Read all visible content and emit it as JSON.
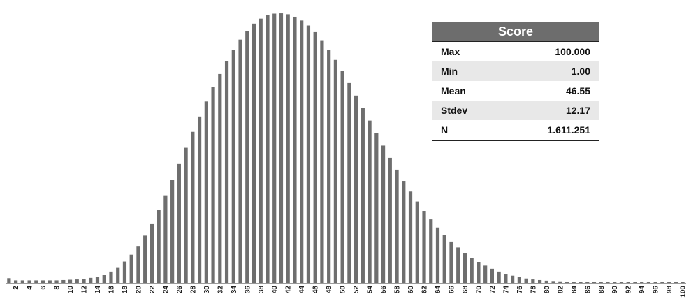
{
  "chart_data": {
    "type": "bar",
    "title": "",
    "xlabel": "",
    "ylabel": "",
    "x": [
      1,
      2,
      3,
      4,
      5,
      6,
      7,
      8,
      9,
      10,
      11,
      12,
      13,
      14,
      15,
      16,
      17,
      18,
      19,
      20,
      21,
      22,
      23,
      24,
      25,
      26,
      27,
      28,
      29,
      30,
      31,
      32,
      33,
      34,
      35,
      36,
      37,
      38,
      39,
      40,
      41,
      42,
      43,
      44,
      45,
      46,
      47,
      48,
      49,
      50,
      51,
      52,
      53,
      54,
      55,
      56,
      57,
      58,
      59,
      60,
      61,
      62,
      63,
      64,
      65,
      66,
      67,
      68,
      69,
      70,
      71,
      72,
      73,
      74,
      75,
      76,
      77,
      78,
      79,
      80,
      81,
      82,
      83,
      84,
      85,
      86,
      87,
      88,
      89,
      90,
      91,
      92,
      93,
      94,
      95,
      96,
      97,
      98,
      99,
      100
    ],
    "x_tick_labels": [
      "2",
      "4",
      "6",
      "8",
      "10",
      "12",
      "14",
      "16",
      "18",
      "20",
      "22",
      "24",
      "26",
      "28",
      "30",
      "32",
      "34",
      "36",
      "38",
      "40",
      "42",
      "44",
      "46",
      "48",
      "50",
      "52",
      "54",
      "56",
      "58",
      "60",
      "62",
      "64",
      "66",
      "68",
      "70",
      "72",
      "74",
      "76",
      "78",
      "80",
      "82",
      "84",
      "86",
      "88",
      "90",
      "92",
      "94",
      "96",
      "98",
      "100"
    ],
    "values": [
      1.5,
      0.8,
      0.8,
      0.8,
      0.8,
      0.8,
      0.8,
      0.8,
      0.9,
      1.0,
      1.1,
      1.3,
      1.6,
      2.0,
      2.6,
      3.6,
      5.0,
      6.8,
      9.0,
      11.8,
      15.1,
      19.0,
      23.3,
      28.0,
      32.9,
      38.0,
      43.2,
      48.3,
      53.2,
      58.0,
      62.6,
      66.8,
      70.8,
      74.5,
      77.8,
      80.6,
      82.9,
      84.5,
      85.6,
      86.1,
      86.2,
      85.9,
      85.1,
      83.9,
      82.3,
      80.2,
      77.6,
      74.6,
      71.3,
      67.7,
      63.9,
      59.9,
      55.9,
      51.9,
      47.9,
      43.9,
      40.0,
      36.2,
      32.6,
      29.2,
      26.0,
      23.0,
      20.3,
      17.7,
      15.3,
      13.2,
      11.3,
      9.6,
      8.0,
      6.7,
      5.5,
      4.5,
      3.6,
      2.9,
      2.3,
      1.8,
      1.4,
      1.1,
      0.9,
      0.7,
      0.6,
      0.5,
      0.4,
      0.3,
      0.3,
      0.2,
      0.2,
      0.2,
      0.1,
      0.1,
      0.1,
      0.1,
      0.1,
      0.1,
      0.1,
      0.1,
      0.1,
      0.1,
      0.1,
      0.1
    ],
    "ylim": [
      0,
      88
    ],
    "grid": false,
    "color": "#6e6e6e"
  },
  "stats_table": {
    "header": "Score",
    "rows": [
      {
        "label": "Max",
        "value": "100.000"
      },
      {
        "label": "Min",
        "value": "1.00"
      },
      {
        "label": "Mean",
        "value": "46.55"
      },
      {
        "label": "Stdev",
        "value": "12.17"
      },
      {
        "label": "N",
        "value": "1.611.251"
      }
    ]
  }
}
